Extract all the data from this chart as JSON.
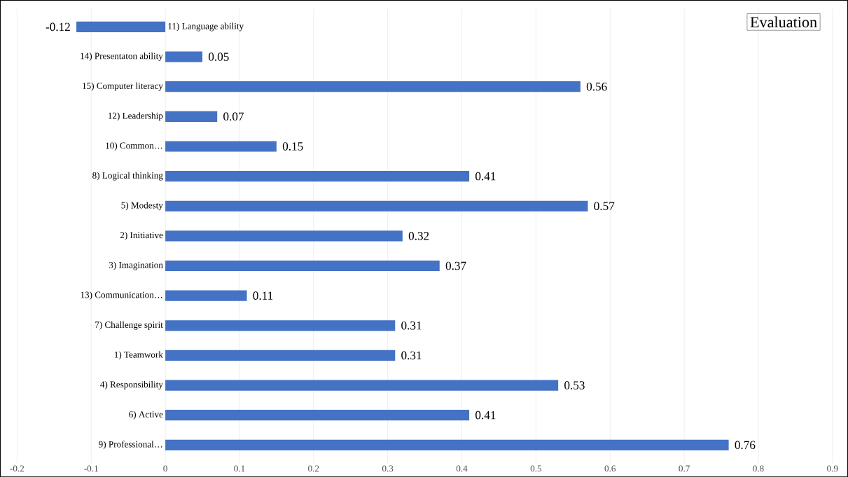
{
  "chart_data": {
    "type": "bar",
    "orientation": "horizontal",
    "title": "Evaluation",
    "categories": [
      "11) Language ability",
      "14) Presentaton ability",
      "15) Computer literacy",
      "12) Leadership",
      "10) Common…",
      "8) Logical thinking",
      "5) Modesty",
      "2) Initiative",
      "3) Imagination",
      "13) Communication…",
      "7) Challenge spirit",
      "1) Teamwork",
      "4) Responsibility",
      "6) Active",
      "9) Professional…"
    ],
    "values": [
      -0.12,
      0.05,
      0.56,
      0.07,
      0.15,
      0.41,
      0.57,
      0.32,
      0.37,
      0.11,
      0.31,
      0.31,
      0.53,
      0.41,
      0.76
    ],
    "color": "#4472c4",
    "data_labels": true,
    "grid": "x",
    "xlim": [
      -0.2,
      0.9
    ],
    "xticks": [
      -0.2,
      -0.1,
      0,
      0.1,
      0.2,
      0.3,
      0.4,
      0.5,
      0.6,
      0.7,
      0.8,
      0.9
    ]
  }
}
